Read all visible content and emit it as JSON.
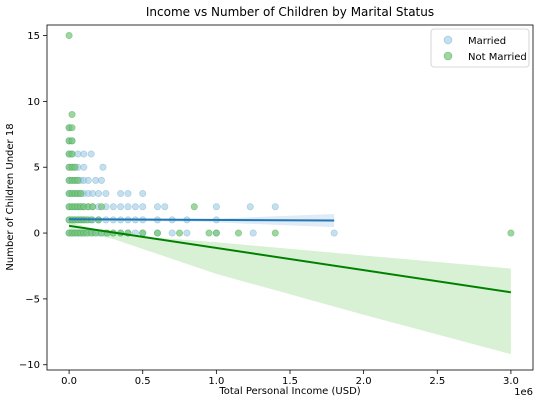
{
  "chart_data": {
    "type": "scatter",
    "title": "Income vs Number of Children by Marital Status",
    "xlabel": "Total Personal Income (USD)",
    "ylabel": "Number of Children Under 18",
    "x_offset_label": "1e6",
    "xlim": [
      -150000,
      3150000
    ],
    "ylim": [
      -10.4,
      15.8
    ],
    "x_ticks": [
      0,
      500000,
      1000000,
      1500000,
      2000000,
      2500000,
      3000000
    ],
    "x_tick_labels": [
      "0.0",
      "0.5",
      "1.0",
      "1.5",
      "2.0",
      "2.5",
      "3.0"
    ],
    "y_ticks": [
      -10,
      -5,
      0,
      5,
      10,
      15
    ],
    "y_tick_labels": [
      "−10",
      "−5",
      "0",
      "5",
      "10",
      "15"
    ],
    "grid": false,
    "legend_position": "top-right",
    "series": [
      {
        "name": "Married",
        "point_color": "#9ecae1",
        "line_color": "#1f77b4",
        "band_color": "#c6dbef",
        "points": [
          [
            0,
            0
          ],
          [
            20000,
            0
          ],
          [
            40000,
            0
          ],
          [
            60000,
            0
          ],
          [
            80000,
            0
          ],
          [
            100000,
            0
          ],
          [
            130000,
            0
          ],
          [
            160000,
            0
          ],
          [
            200000,
            0
          ],
          [
            250000,
            0
          ],
          [
            300000,
            0
          ],
          [
            350000,
            0
          ],
          [
            400000,
            0
          ],
          [
            450000,
            0
          ],
          [
            500000,
            0
          ],
          [
            600000,
            0
          ],
          [
            700000,
            0
          ],
          [
            800000,
            0
          ],
          [
            1000000,
            0
          ],
          [
            1250000,
            0
          ],
          [
            1800000,
            0
          ],
          [
            0,
            1
          ],
          [
            20000,
            1
          ],
          [
            40000,
            1
          ],
          [
            60000,
            1
          ],
          [
            80000,
            1
          ],
          [
            100000,
            1
          ],
          [
            130000,
            1
          ],
          [
            160000,
            1
          ],
          [
            200000,
            1
          ],
          [
            250000,
            1
          ],
          [
            300000,
            1
          ],
          [
            350000,
            1
          ],
          [
            400000,
            1
          ],
          [
            450000,
            1
          ],
          [
            500000,
            1
          ],
          [
            600000,
            1
          ],
          [
            700000,
            1
          ],
          [
            800000,
            1
          ],
          [
            1000000,
            1
          ],
          [
            0,
            2
          ],
          [
            20000,
            2
          ],
          [
            40000,
            2
          ],
          [
            60000,
            2
          ],
          [
            80000,
            2
          ],
          [
            100000,
            2
          ],
          [
            130000,
            2
          ],
          [
            160000,
            2
          ],
          [
            200000,
            2
          ],
          [
            250000,
            2
          ],
          [
            300000,
            2
          ],
          [
            350000,
            2
          ],
          [
            400000,
            2
          ],
          [
            450000,
            2
          ],
          [
            500000,
            2
          ],
          [
            600000,
            2
          ],
          [
            650000,
            2
          ],
          [
            1000000,
            2
          ],
          [
            1230000,
            2
          ],
          [
            1400000,
            2
          ],
          [
            0,
            3
          ],
          [
            20000,
            3
          ],
          [
            40000,
            3
          ],
          [
            60000,
            3
          ],
          [
            80000,
            3
          ],
          [
            100000,
            3
          ],
          [
            130000,
            3
          ],
          [
            160000,
            3
          ],
          [
            200000,
            3
          ],
          [
            250000,
            3
          ],
          [
            350000,
            3
          ],
          [
            400000,
            3
          ],
          [
            500000,
            3
          ],
          [
            0,
            4
          ],
          [
            20000,
            4
          ],
          [
            40000,
            4
          ],
          [
            60000,
            4
          ],
          [
            80000,
            4
          ],
          [
            100000,
            4
          ],
          [
            130000,
            4
          ],
          [
            180000,
            4
          ],
          [
            220000,
            4
          ],
          [
            0,
            5
          ],
          [
            20000,
            5
          ],
          [
            40000,
            5
          ],
          [
            60000,
            5
          ],
          [
            100000,
            5
          ],
          [
            230000,
            5
          ],
          [
            0,
            6
          ],
          [
            20000,
            6
          ],
          [
            60000,
            6
          ],
          [
            100000,
            6
          ],
          [
            150000,
            6
          ],
          [
            0,
            7
          ],
          [
            20000,
            7
          ],
          [
            0,
            8
          ]
        ],
        "fit": {
          "x0": 0,
          "x1": 1800000,
          "y0": 1.05,
          "y1": 0.95,
          "band": [
            [
              0,
              0.95,
              1.15
            ],
            [
              900000,
              0.85,
              1.05
            ],
            [
              1800000,
              0.45,
              1.45
            ]
          ]
        }
      },
      {
        "name": "Not Married",
        "point_color": "#74c476",
        "line_color": "#008000",
        "band_color": "#c7e9c0",
        "points": [
          [
            0,
            0
          ],
          [
            20000,
            0
          ],
          [
            40000,
            0
          ],
          [
            60000,
            0
          ],
          [
            80000,
            0
          ],
          [
            100000,
            0
          ],
          [
            120000,
            0
          ],
          [
            150000,
            0
          ],
          [
            180000,
            0
          ],
          [
            220000,
            0
          ],
          [
            260000,
            0
          ],
          [
            300000,
            0
          ],
          [
            350000,
            0
          ],
          [
            400000,
            0
          ],
          [
            500000,
            0
          ],
          [
            600000,
            0
          ],
          [
            750000,
            0
          ],
          [
            950000,
            0
          ],
          [
            1000000,
            0
          ],
          [
            1150000,
            0
          ],
          [
            1400000,
            0
          ],
          [
            3000000,
            0
          ],
          [
            0,
            1
          ],
          [
            20000,
            1
          ],
          [
            40000,
            1
          ],
          [
            60000,
            1
          ],
          [
            80000,
            1
          ],
          [
            100000,
            1
          ],
          [
            120000,
            1
          ],
          [
            150000,
            1
          ],
          [
            200000,
            1
          ],
          [
            0,
            2
          ],
          [
            20000,
            2
          ],
          [
            40000,
            2
          ],
          [
            60000,
            2
          ],
          [
            80000,
            2
          ],
          [
            100000,
            2
          ],
          [
            130000,
            2
          ],
          [
            160000,
            2
          ],
          [
            220000,
            2
          ],
          [
            850000,
            2
          ],
          [
            0,
            3
          ],
          [
            20000,
            3
          ],
          [
            40000,
            3
          ],
          [
            60000,
            3
          ],
          [
            80000,
            3
          ],
          [
            0,
            4
          ],
          [
            20000,
            4
          ],
          [
            40000,
            4
          ],
          [
            60000,
            4
          ],
          [
            0,
            5
          ],
          [
            20000,
            5
          ],
          [
            40000,
            5
          ],
          [
            0,
            6
          ],
          [
            20000,
            6
          ],
          [
            0,
            7
          ],
          [
            20000,
            7
          ],
          [
            0,
            8
          ],
          [
            20000,
            8
          ],
          [
            20000,
            9
          ],
          [
            0,
            15
          ]
        ],
        "fit": {
          "x0": 0,
          "x1": 3000000,
          "y0": 0.55,
          "y1": -4.5,
          "band": [
            [
              0,
              0.25,
              0.85
            ],
            [
              300000,
              -0.45,
              -0.1
            ],
            [
              1000000,
              -3.1,
              -0.7
            ],
            [
              2000000,
              -6.2,
              -1.7
            ],
            [
              3000000,
              -9.2,
              -2.7
            ]
          ]
        }
      }
    ]
  }
}
